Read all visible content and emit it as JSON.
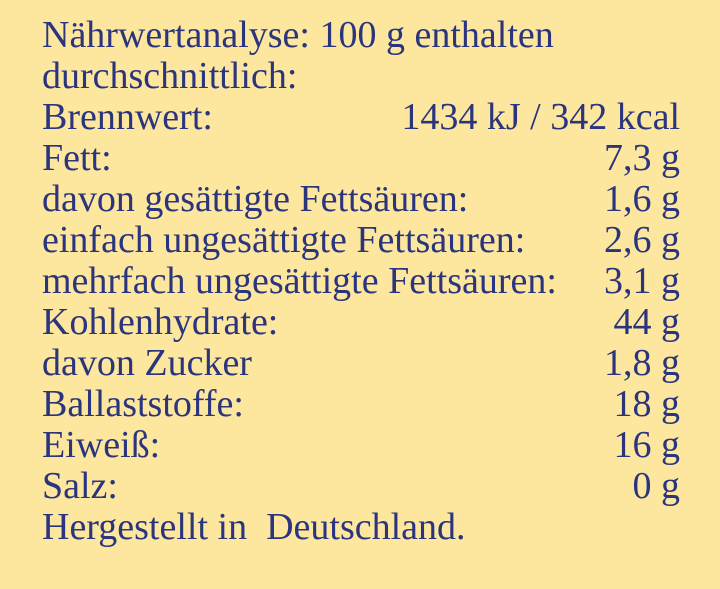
{
  "header": {
    "line1": "Nährwertanalyse: 100 g enthalten",
    "line2": "durchschnittlich:"
  },
  "rows": [
    {
      "label": "Brennwert:",
      "value": "1434 kJ / 342 kcal"
    },
    {
      "label": "Fett:",
      "value": "7,3 g"
    },
    {
      "label": "davon gesättigte Fettsäuren:",
      "value": "1,6 g"
    },
    {
      "label": "einfach ungesättigte Fettsäuren:",
      "value": "2,6 g"
    },
    {
      "label": "mehrfach ungesättigte Fettsäuren:",
      "value": "3,1 g"
    },
    {
      "label": "Kohlenhydrate:",
      "value": "44 g"
    },
    {
      "label": "davon Zucker",
      "value": "1,8 g"
    },
    {
      "label": "Ballaststoffe:",
      "value": "18 g"
    },
    {
      "label": "Eiweiß:",
      "value": "16 g"
    },
    {
      "label": "Salz:",
      "value": "0 g"
    }
  ],
  "footer": {
    "text": "Hergestellt in  Deutschland."
  },
  "colors": {
    "background": "#FDE69E",
    "text": "#2A357E"
  }
}
